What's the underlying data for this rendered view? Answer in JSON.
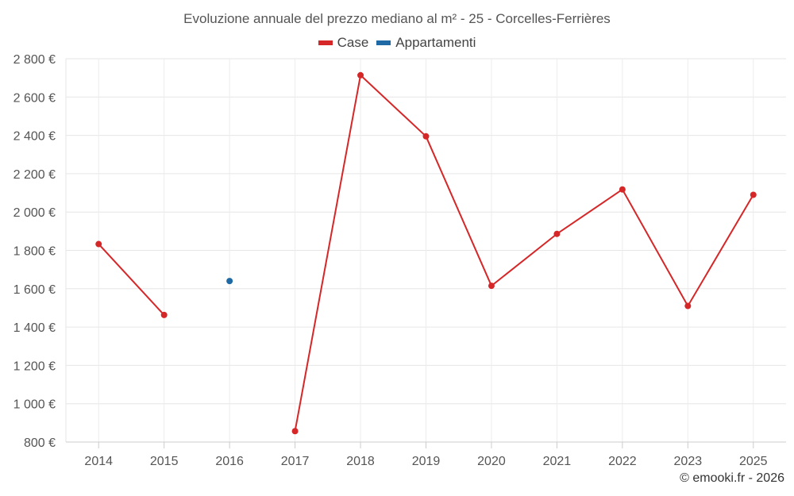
{
  "chart_data": {
    "type": "line",
    "title": "Evoluzione annuale del prezzo mediano al m² - 25 - Corcelles-Ferrières",
    "categories": [
      "2014",
      "2015",
      "2016",
      "2017",
      "2018",
      "2019",
      "2020",
      "2021",
      "2022",
      "2023",
      "2025"
    ],
    "y_ticks": [
      800,
      1000,
      1200,
      1400,
      1600,
      1800,
      2000,
      2200,
      2400,
      2600,
      2800
    ],
    "y_tick_labels": [
      "800 €",
      "1 000 €",
      "1 200 €",
      "1 400 €",
      "1 600 €",
      "1 800 €",
      "2 000 €",
      "2 200 €",
      "2 400 €",
      "2 600 €",
      "2 800 €"
    ],
    "ylim": [
      800,
      2800
    ],
    "grid": true,
    "legend_position": "top-center",
    "series": [
      {
        "name": "Case",
        "color": "#d62728",
        "values": [
          1833,
          1463,
          null,
          857,
          2714,
          2395,
          1615,
          1886,
          2118,
          1510,
          2090
        ]
      },
      {
        "name": "Appartamenti",
        "color": "#1f6aa5",
        "values": [
          null,
          null,
          1640,
          null,
          null,
          null,
          null,
          null,
          null,
          null,
          null
        ]
      }
    ]
  },
  "credit": "© emooki.fr - 2026"
}
